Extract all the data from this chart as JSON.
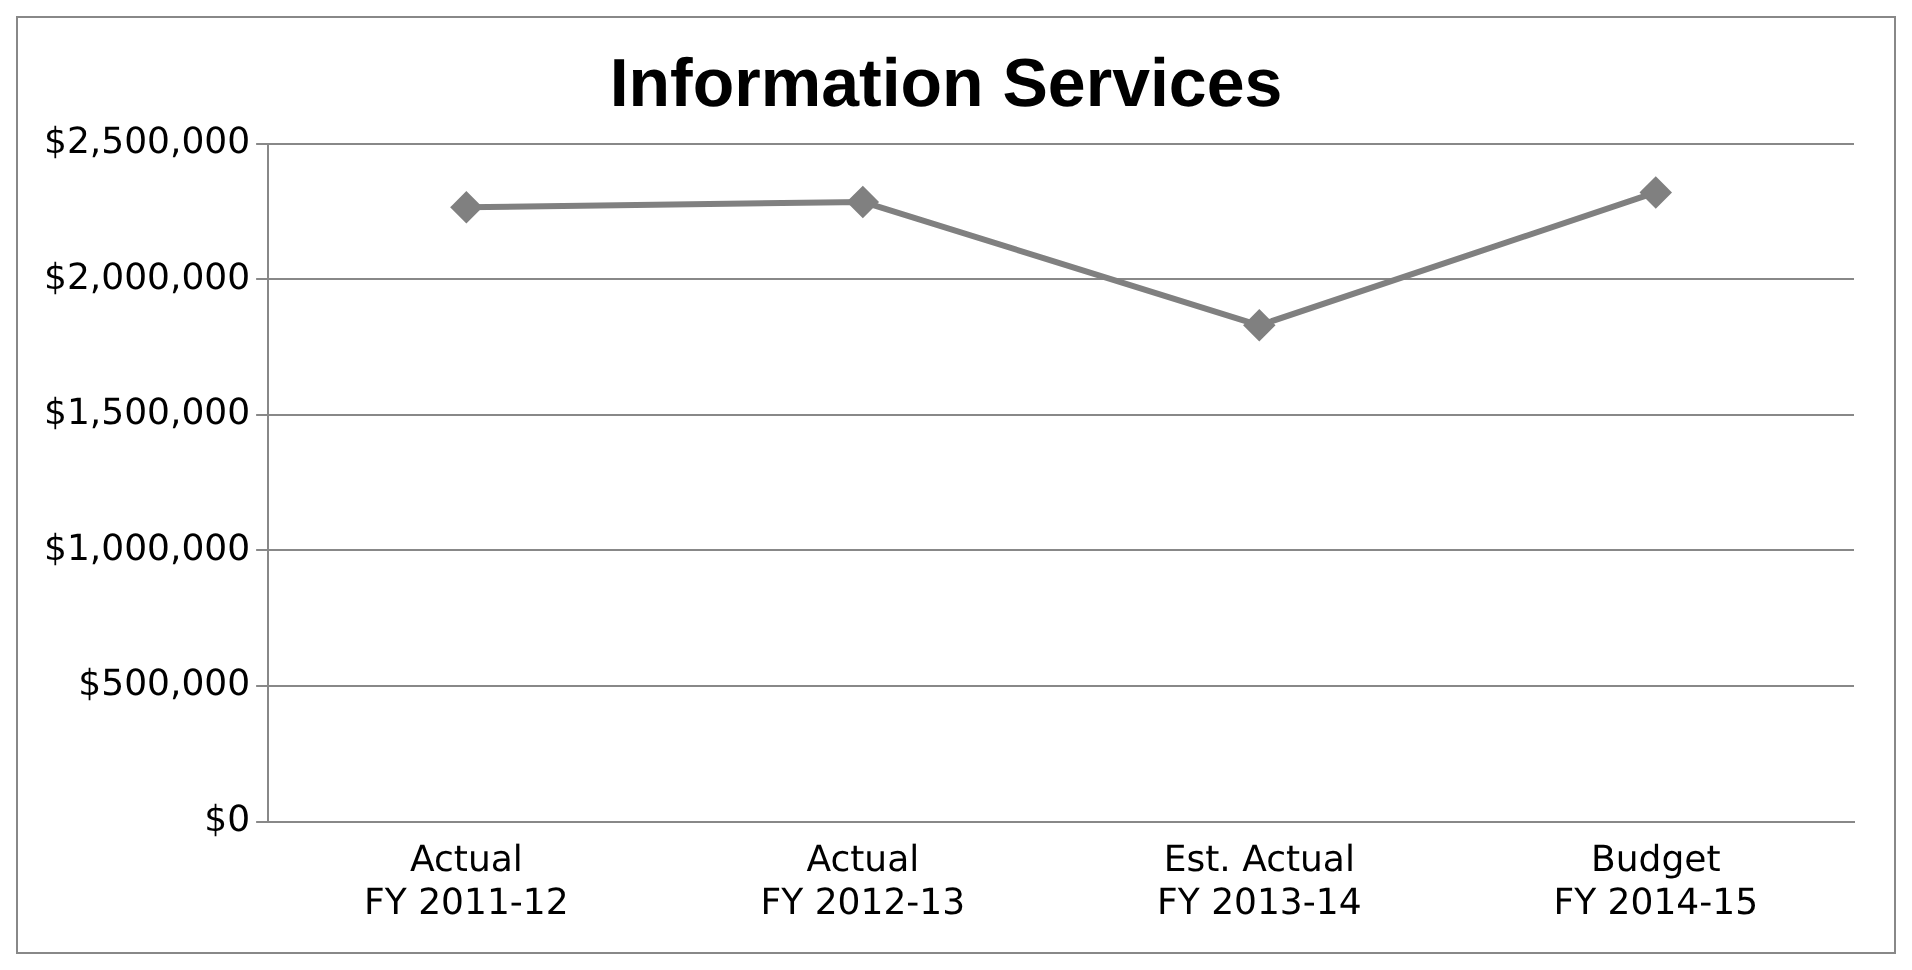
{
  "chart_data": {
    "type": "line",
    "title": "Information Services",
    "categories": [
      "Actual FY 2011-12",
      "Actual FY 2012-13",
      "Est. Actual FY 2013-14",
      "Budget FY 2014-15"
    ],
    "series": [
      {
        "color": "#808080",
        "values": [
          2265000,
          2285000,
          1830000,
          2320000
        ]
      }
    ],
    "ylim": [
      0,
      2500000
    ],
    "yticks": [
      {
        "value": 0,
        "label": "$0"
      },
      {
        "value": 500000,
        "label": "$500,000"
      },
      {
        "value": 1000000,
        "label": "$1,000,000"
      },
      {
        "value": 1500000,
        "label": "$1,500,000"
      },
      {
        "value": 2000000,
        "label": "$2,000,000"
      },
      {
        "value": 2500000,
        "label": "$2,500,000"
      }
    ],
    "grid": "y",
    "legend": false,
    "marker": "diamond",
    "line_style": "solid"
  }
}
